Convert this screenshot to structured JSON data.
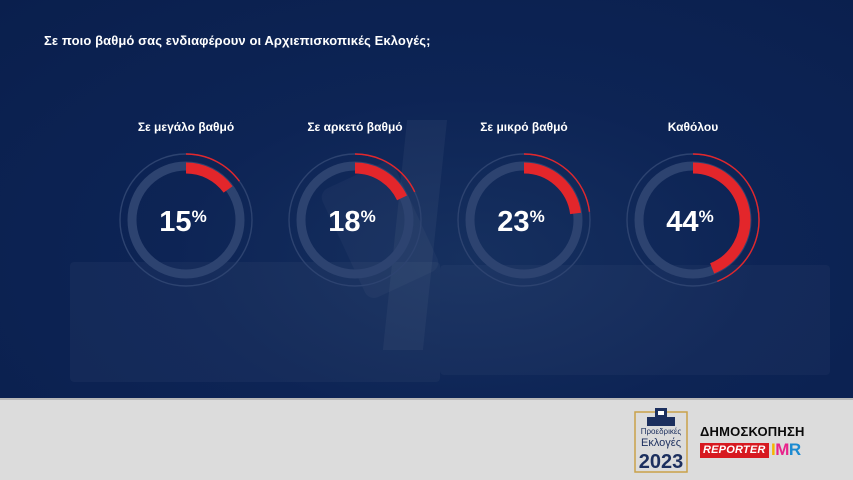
{
  "question": "Σε ποιο βαθμό σας ενδιαφέρουν οι Αρχιεπισκοπικές Εκλογές;",
  "chart_data": {
    "type": "donut",
    "title": "Σε ποιο βαθμό σας ενδιαφέρουν οι Αρχιεπισκοπικές Εκλογές;",
    "categories": [
      "Σε μεγάλο βαθμό",
      "Σε αρκετό βαθμό",
      "Σε μικρό βαθμό",
      "Καθόλου"
    ],
    "values": [
      15,
      18,
      23,
      44
    ],
    "value_suffix": "%"
  },
  "colors": {
    "background": "#0b2152",
    "accent": "#e3262b",
    "track": "#2d4370",
    "footer": "#dcdcdc"
  },
  "footer": {
    "election_logo": {
      "line1": "Προεδρικές",
      "line2": "Εκλογές",
      "year": "2023"
    },
    "poll_label": "ΔΗΜΟΣΚΟΠΗΣΗ",
    "reporter_label": "REPORTER",
    "imr_label": {
      "i": "I",
      "m": "M",
      "r": "R"
    }
  }
}
